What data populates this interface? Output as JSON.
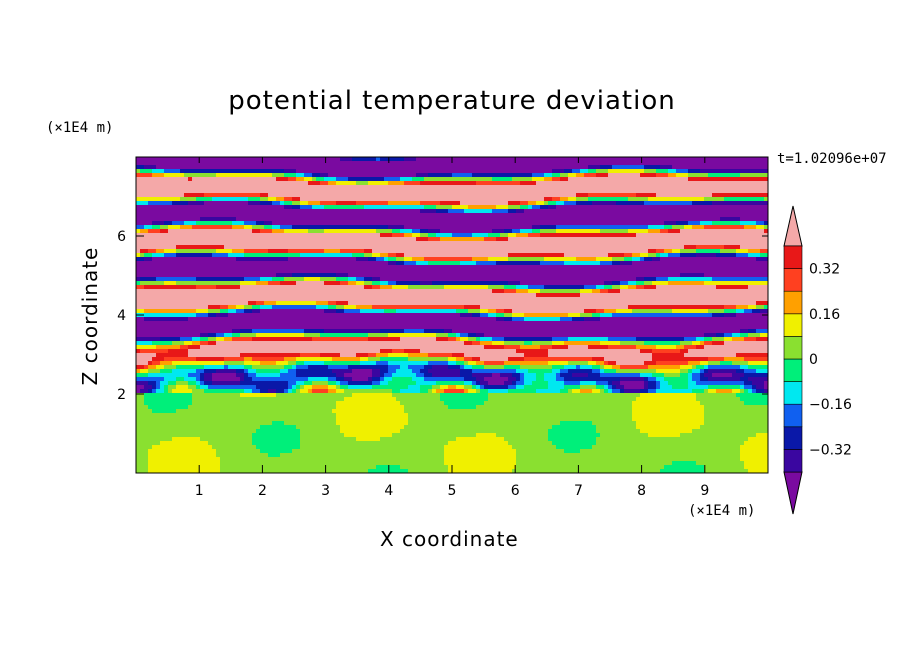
{
  "chart_data": {
    "type": "heatmap",
    "title": "potential temperature deviation",
    "xlabel": "X coordinate",
    "ylabel": "Z coordinate",
    "x_unit": "(×1E4 m)",
    "y_unit": "(×1E4 m)",
    "time_label": "t=1.02096e+07",
    "xlim": [
      0,
      10
    ],
    "ylim": [
      0,
      8
    ],
    "x_ticks": [
      1,
      2,
      3,
      4,
      5,
      6,
      7,
      8,
      9
    ],
    "y_ticks": [
      2,
      4,
      6
    ],
    "colorbar": {
      "levels": [
        -0.4,
        -0.32,
        -0.24,
        -0.16,
        -0.08,
        0,
        0.08,
        0.16,
        0.24,
        0.32,
        0.4
      ],
      "tick_labels": [
        "0.32",
        "0.16",
        "0",
        "−0.16",
        "−0.32"
      ],
      "tick_values": [
        0.32,
        0.16,
        0,
        -0.16,
        -0.32
      ],
      "colors": [
        "#7a0aa0",
        "#3a06a0",
        "#0a18a8",
        "#1060f0",
        "#00e8f0",
        "#00ef7a",
        "#8ae030",
        "#f0f000",
        "#ffa000",
        "#ff4020",
        "#e81818",
        "#f4a8a8"
      ],
      "extend": "both"
    }
  }
}
